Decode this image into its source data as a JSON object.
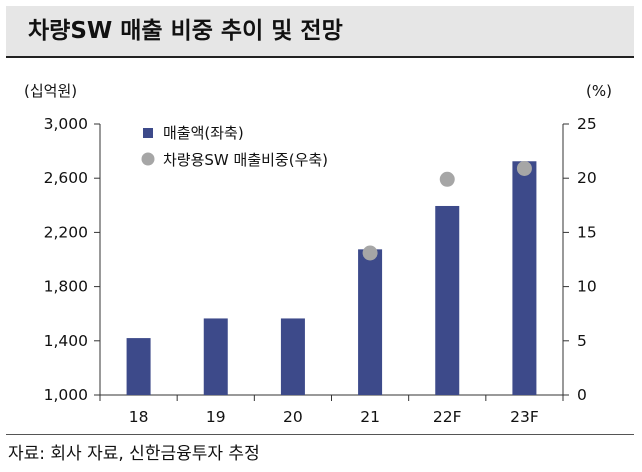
{
  "header": {
    "title": "차량SW 매출 비중 추이 및 전망"
  },
  "footer": {
    "source": "자료: 회사 자료, 신한금융투자 추정"
  },
  "chart_data": {
    "type": "bar+scatter",
    "categories": [
      "18",
      "19",
      "20",
      "21",
      "22F",
      "23F"
    ],
    "series": [
      {
        "name": "매출액(좌축)",
        "axis": "left",
        "kind": "bar",
        "color": "#3d4a8a",
        "values": [
          1420,
          1565,
          1565,
          2075,
          2395,
          2725
        ]
      },
      {
        "name": "차량용SW 매출비중(우축)",
        "axis": "right",
        "kind": "scatter",
        "color": "#a6a6a6",
        "values": [
          null,
          null,
          null,
          13.1,
          19.9,
          20.9
        ]
      }
    ],
    "left_axis": {
      "unit": "(십억원)",
      "ylim": [
        1000,
        3000
      ],
      "ticks": [
        1000,
        1400,
        1800,
        2200,
        2600,
        3000
      ],
      "tick_labels": [
        "1,000",
        "1,400",
        "1,800",
        "2,200",
        "2,600",
        "3,000"
      ]
    },
    "right_axis": {
      "unit": "(%)",
      "ylim": [
        0,
        25
      ],
      "ticks": [
        0,
        5,
        10,
        15,
        20,
        25
      ],
      "tick_labels": [
        "0",
        "5",
        "10",
        "15",
        "20",
        "25"
      ]
    },
    "legend": "top-left",
    "grid": false
  }
}
